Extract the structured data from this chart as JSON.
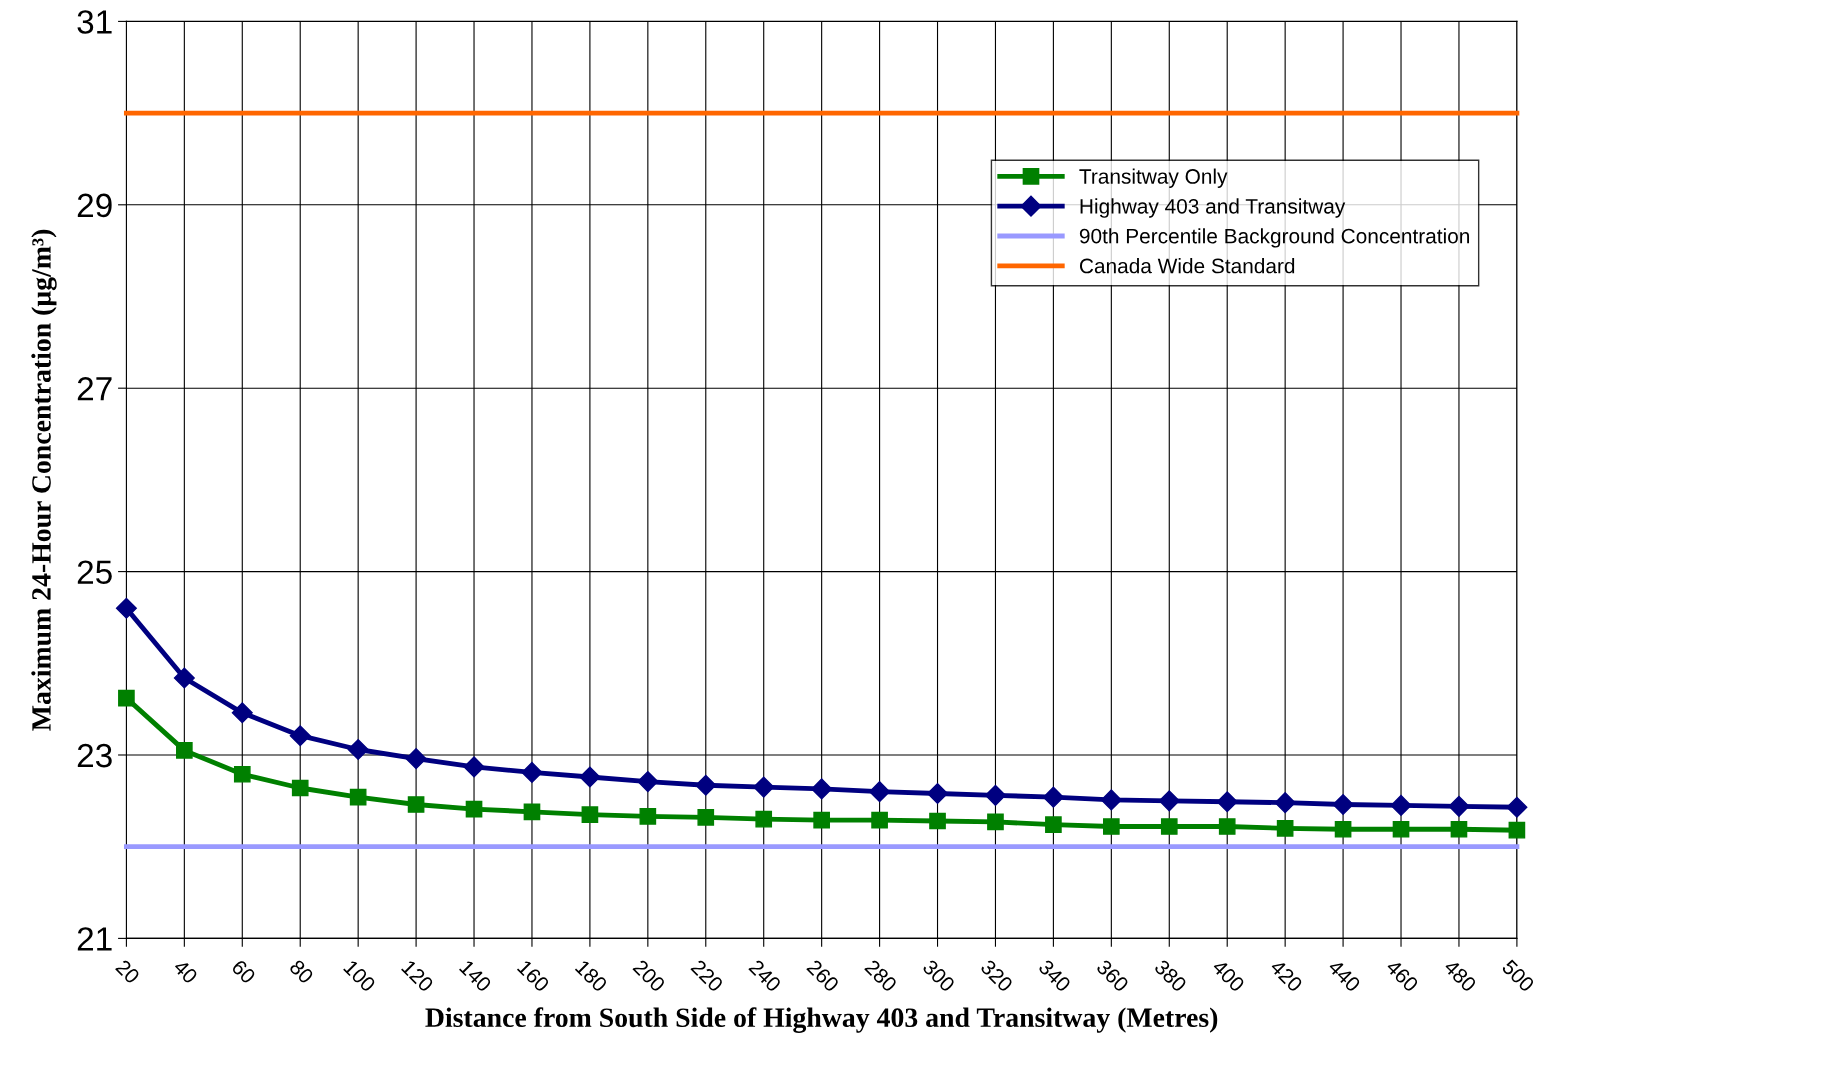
{
  "chart_data": {
    "type": "line",
    "xlabel": "Distance from South Side of Highway 403 and Transitway (Metres)",
    "ylabel": "Maximum 24-Hour Concentration (μg/m³)",
    "categories": [
      "20",
      "40",
      "60",
      "80",
      "100",
      "120",
      "140",
      "160",
      "180",
      "200",
      "220",
      "240",
      "260",
      "280",
      "300",
      "320",
      "340",
      "360",
      "380",
      "400",
      "420",
      "440",
      "460",
      "480",
      "500"
    ],
    "series": [
      {
        "name": "Transitway Only",
        "color": "#008000",
        "marker": "square",
        "values": [
          23.62,
          23.05,
          22.79,
          22.64,
          22.54,
          22.46,
          22.41,
          22.38,
          22.35,
          22.33,
          22.32,
          22.3,
          22.29,
          22.29,
          22.28,
          22.27,
          22.24,
          22.22,
          22.22,
          22.22,
          22.2,
          22.19,
          22.19,
          22.19,
          22.18
        ]
      },
      {
        "name": "Highway 403 and Transitway",
        "color": "#000080",
        "marker": "diamond",
        "values": [
          24.6,
          23.84,
          23.46,
          23.21,
          23.06,
          22.96,
          22.87,
          22.81,
          22.76,
          22.71,
          22.67,
          22.65,
          22.63,
          22.6,
          22.58,
          22.56,
          22.54,
          22.51,
          22.5,
          22.49,
          22.48,
          22.46,
          22.45,
          22.44,
          22.43
        ]
      },
      {
        "name": "90th Percentile Background Concentration",
        "color": "#9999ff",
        "marker": "none",
        "values": [
          22,
          22,
          22,
          22,
          22,
          22,
          22,
          22,
          22,
          22,
          22,
          22,
          22,
          22,
          22,
          22,
          22,
          22,
          22,
          22,
          22,
          22,
          22,
          22,
          22
        ]
      },
      {
        "name": "Canada Wide Standard",
        "color": "#ff6600",
        "marker": "none",
        "values": [
          30,
          30,
          30,
          30,
          30,
          30,
          30,
          30,
          30,
          30,
          30,
          30,
          30,
          30,
          30,
          30,
          30,
          30,
          30,
          30,
          30,
          30,
          30,
          30,
          30
        ]
      }
    ],
    "ylim": [
      21,
      31
    ],
    "yticks": [
      21,
      23,
      25,
      27,
      29,
      31
    ],
    "grid": true,
    "legend": "top right",
    "line_style": "solid"
  }
}
